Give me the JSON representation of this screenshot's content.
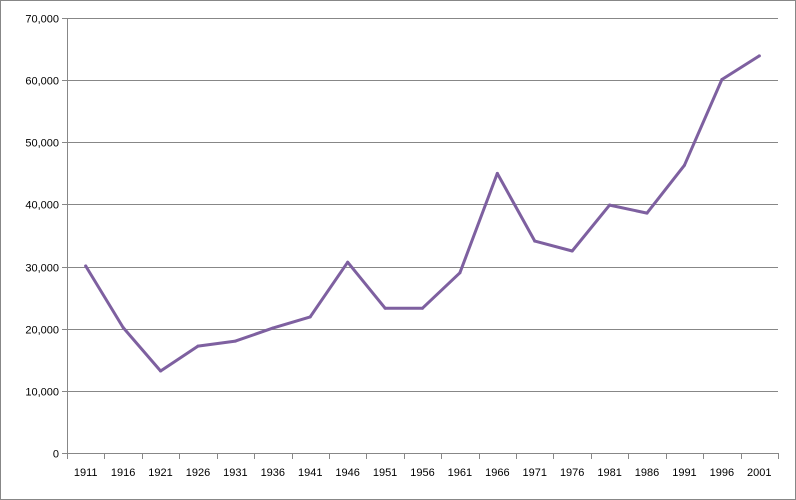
{
  "chart_data": {
    "type": "line",
    "title": "",
    "xlabel": "",
    "ylabel": "",
    "categories": [
      "1911",
      "1916",
      "1921",
      "1926",
      "1931",
      "1936",
      "1941",
      "1946",
      "1951",
      "1956",
      "1961",
      "1966",
      "1971",
      "1976",
      "1981",
      "1986",
      "1991",
      "1996",
      "2001"
    ],
    "series": [
      {
        "values": [
          30100,
          20200,
          13200,
          17200,
          18000,
          20100,
          21900,
          30700,
          23300,
          23300,
          29000,
          45000,
          34100,
          32500,
          39900,
          38600,
          46300,
          60100,
          63900
        ],
        "color": "#7e60a0"
      }
    ],
    "ylim": [
      0,
      70000
    ],
    "yticks": [
      0,
      10000,
      20000,
      30000,
      40000,
      50000,
      60000,
      70000
    ],
    "ytick_labels": [
      "0",
      "10,000",
      "20,000",
      "30,000",
      "40,000",
      "50,000",
      "60,000",
      "70,000"
    ],
    "grid": "horizontal",
    "legend": "none"
  }
}
